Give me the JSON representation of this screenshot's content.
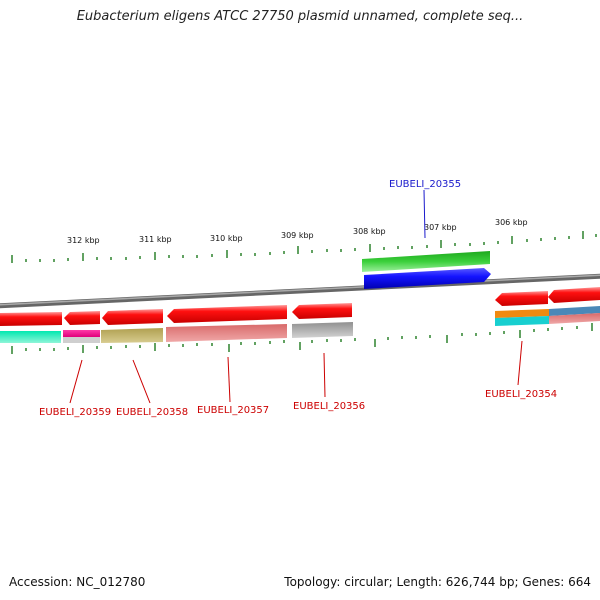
{
  "title": "Eubacterium eligens ATCC 27750 plasmid unnamed, complete seq...",
  "footer": {
    "accession": "Accession: NC_012780",
    "summary": "Topology: circular; Length: 626,744 bp; Genes: 664"
  },
  "scale_labels": [
    "312 kbp",
    "311 kbp",
    "310 kbp",
    "309 kbp",
    "308 kbp",
    "307 kbp",
    "306 kbp"
  ],
  "genes": [
    {
      "id": "EUBELI_20355",
      "strand": "+",
      "color": "#1a1acc"
    },
    {
      "id": "EUBELI_20359",
      "strand": "-",
      "color": "#cc0000"
    },
    {
      "id": "EUBELI_20358",
      "strand": "-",
      "color": "#cc0000"
    },
    {
      "id": "EUBELI_20357",
      "strand": "-",
      "color": "#cc0000"
    },
    {
      "id": "EUBELI_20356",
      "strand": "-",
      "color": "#cc0000"
    },
    {
      "id": "EUBELI_20354",
      "strand": "-",
      "color": "#cc0000"
    }
  ]
}
